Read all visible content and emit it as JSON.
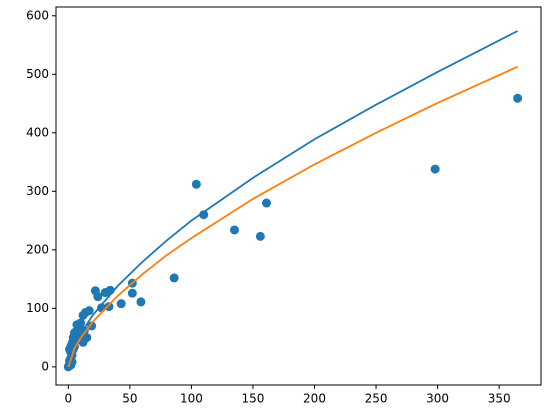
{
  "chart_data": {
    "type": "scatter",
    "xlim": [
      -10,
      384
    ],
    "xticks": [
      0,
      50,
      100,
      150,
      200,
      250,
      300,
      350
    ],
    "ylim": [
      -31,
      615
    ],
    "yticks": [
      0,
      100,
      200,
      300,
      400,
      500,
      600
    ],
    "series": [
      {
        "type": "scatter",
        "color": "#1f77b4",
        "x": [
          365,
          298,
          161,
          156,
          135,
          110,
          104,
          86,
          59,
          52,
          52,
          43,
          34,
          33,
          30,
          27,
          24,
          22,
          19,
          17,
          14,
          12,
          12,
          10,
          10,
          9,
          8,
          7,
          6,
          5,
          5,
          4,
          4,
          3,
          3,
          2,
          2,
          1,
          1,
          0.5,
          0,
          1,
          2,
          6,
          8,
          11,
          13,
          15,
          3,
          2
        ],
        "values": [
          459,
          338,
          280,
          223,
          234,
          260,
          312,
          152,
          111,
          126,
          143,
          108,
          131,
          103,
          127,
          101,
          120,
          130,
          70,
          96,
          93,
          42,
          88,
          75,
          48,
          65,
          55,
          72,
          45,
          58,
          35,
          50,
          30,
          40,
          20,
          25,
          15,
          10,
          5,
          2,
          0,
          30,
          35,
          60,
          70,
          55,
          62,
          50,
          8,
          3
        ]
      },
      {
        "type": "line",
        "color": "#1f77b4",
        "x": [
          0,
          5,
          10,
          20,
          40,
          60,
          80,
          100,
          150,
          200,
          250,
          300,
          365
        ],
        "values": [
          0,
          36.4,
          56.8,
          88.6,
          138,
          179,
          216,
          250,
          323,
          389,
          448,
          504,
          574
        ]
      },
      {
        "type": "line",
        "color": "#ff7f0e",
        "x": [
          0,
          5,
          10,
          20,
          40,
          60,
          80,
          100,
          150,
          200,
          250,
          300,
          365
        ],
        "values": [
          0,
          31.3,
          49.2,
          77.3,
          121,
          158,
          191,
          220,
          287,
          346,
          400,
          451,
          513
        ]
      }
    ]
  }
}
